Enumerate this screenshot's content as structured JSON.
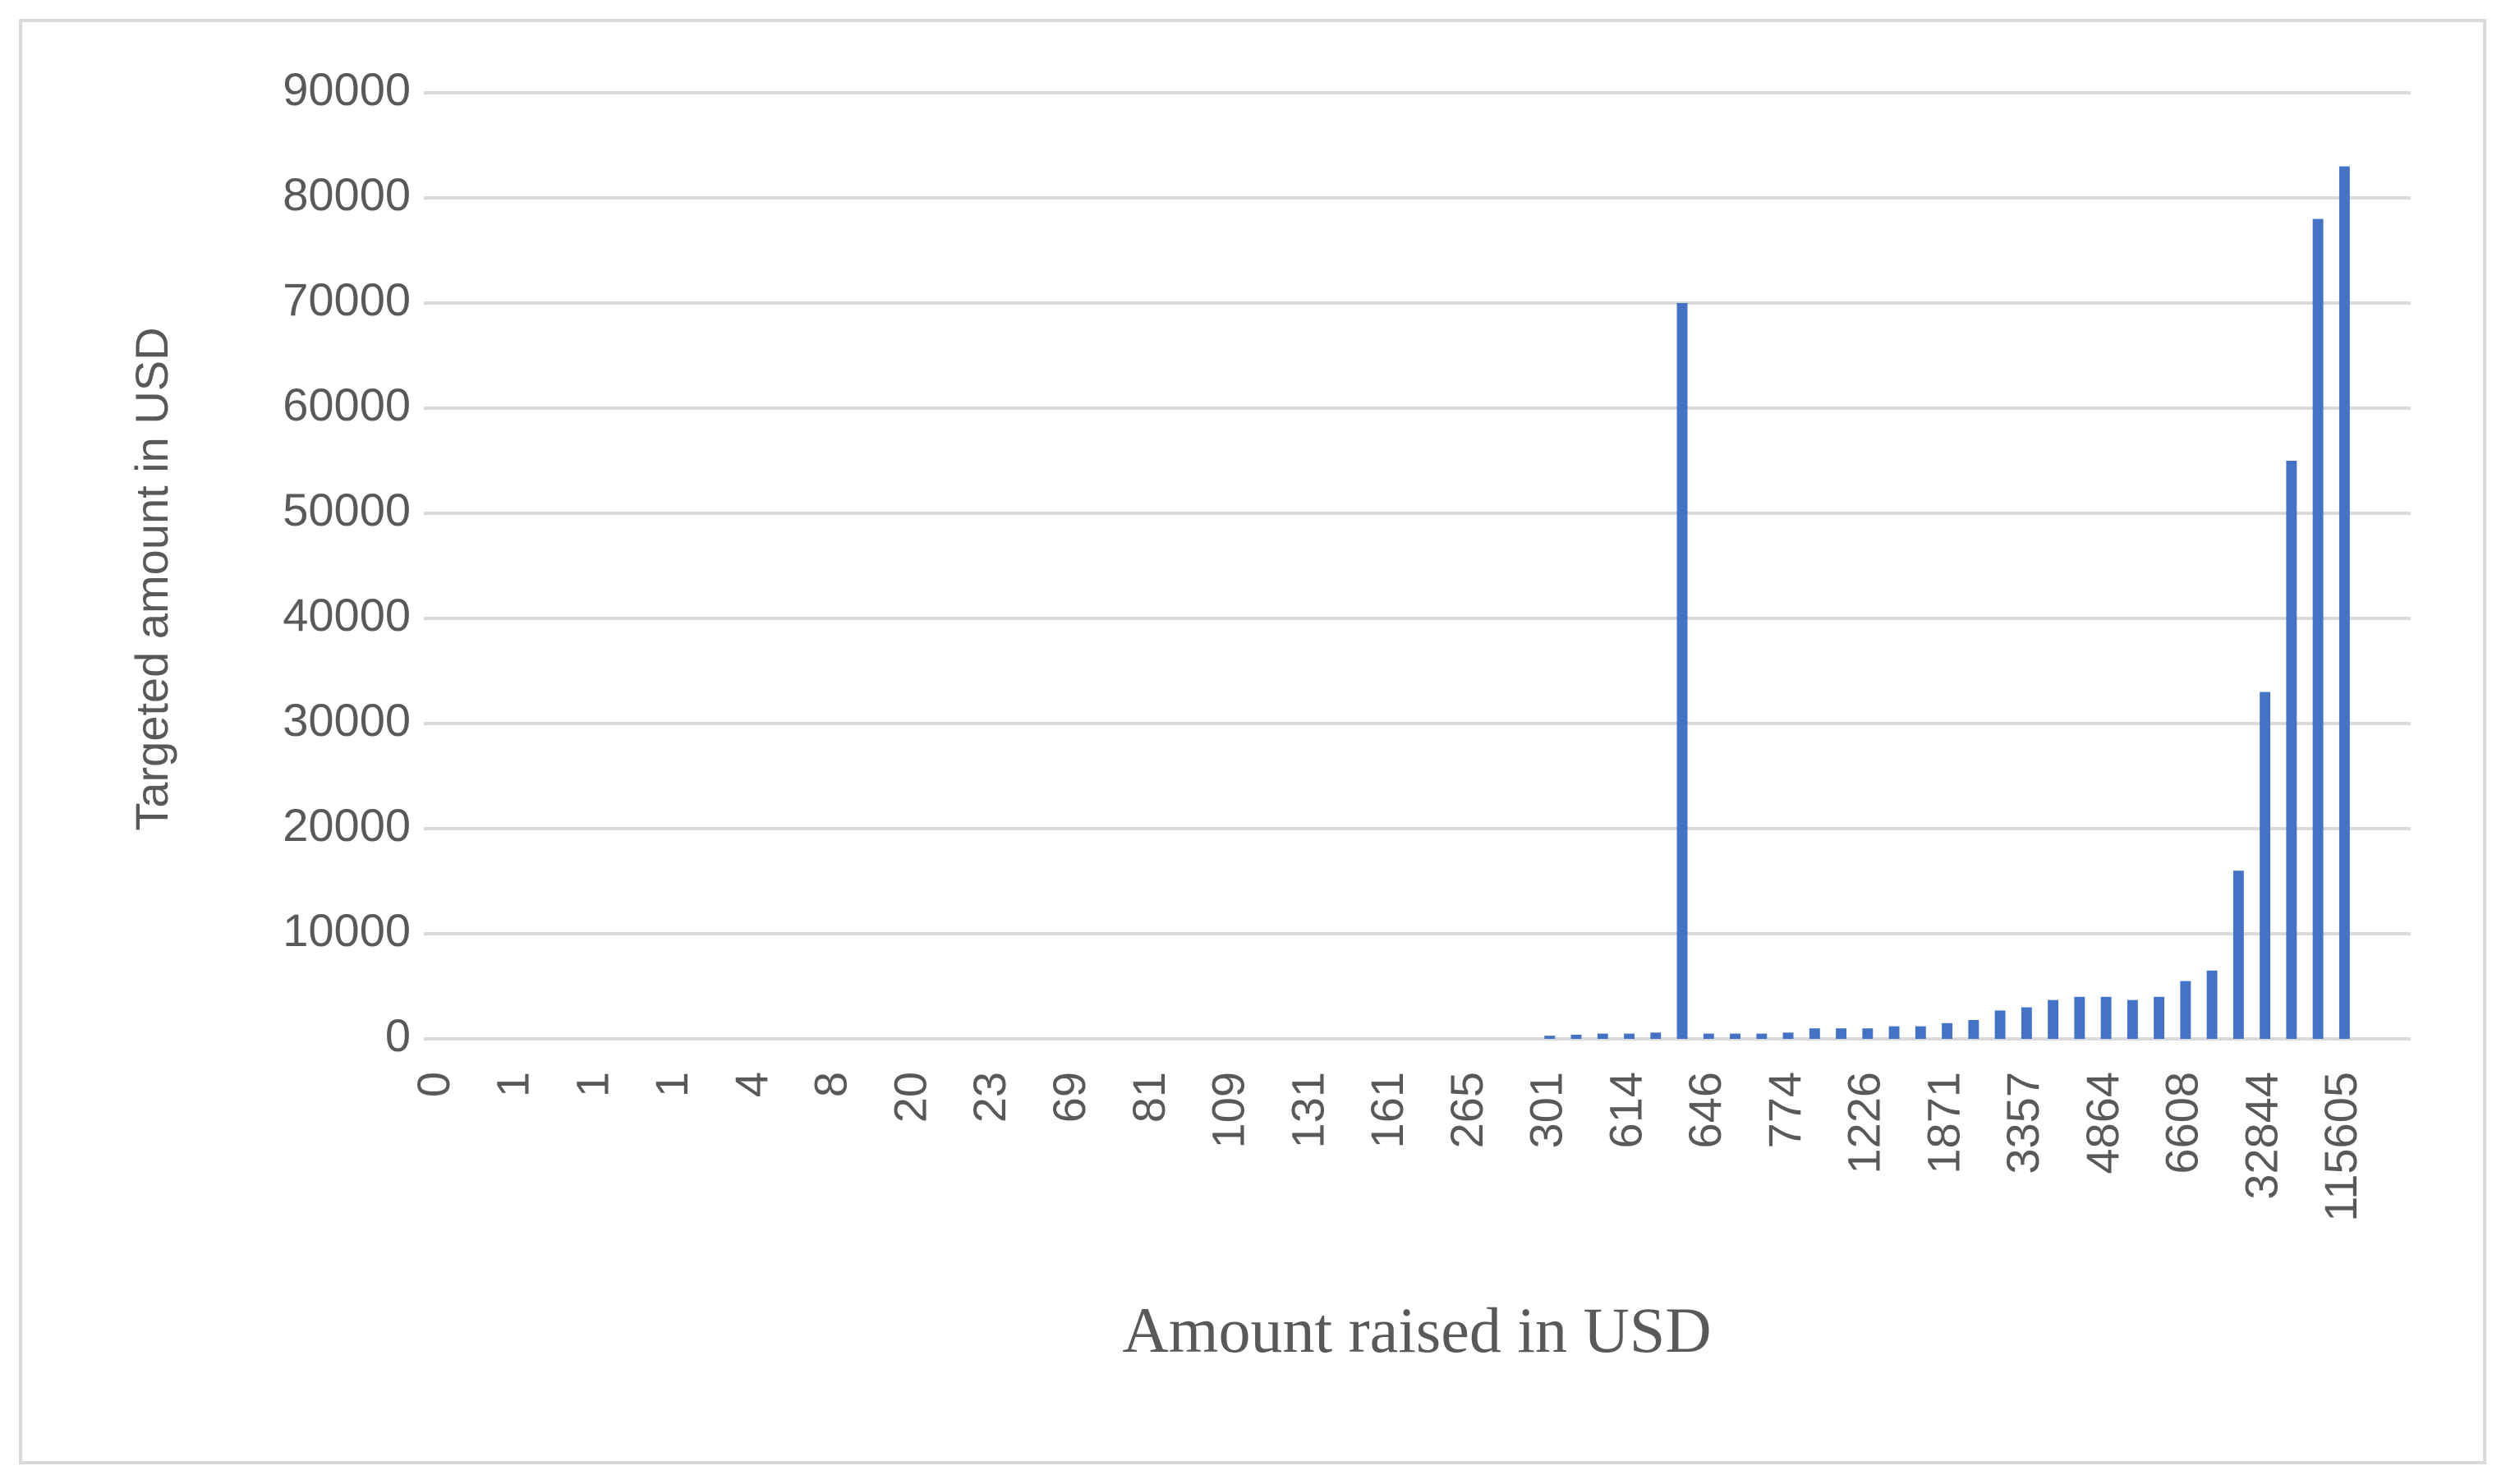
{
  "chart_data": {
    "type": "bar",
    "y_label": "Targeted amount in USD",
    "x_label": "Amount raised in USD",
    "categories": [
      "0",
      null,
      null,
      "1",
      null,
      null,
      "1",
      null,
      null,
      "1",
      null,
      null,
      "4",
      null,
      null,
      "8",
      null,
      null,
      "20",
      null,
      null,
      "23",
      null,
      null,
      "69",
      null,
      null,
      "81",
      null,
      null,
      "109",
      null,
      null,
      "131",
      null,
      null,
      "161",
      null,
      null,
      "265",
      null,
      null,
      "301",
      null,
      null,
      "614",
      null,
      null,
      "646",
      null,
      null,
      "774",
      null,
      null,
      "1226",
      null,
      null,
      "1871",
      null,
      null,
      "3357",
      null,
      null,
      "4864",
      null,
      null,
      "6608",
      null,
      null,
      "32844",
      null,
      null,
      "115605",
      null,
      null
    ],
    "values": [
      0,
      0,
      0,
      0,
      0,
      0,
      0,
      0,
      0,
      0,
      0,
      0,
      0,
      0,
      0,
      0,
      0,
      0,
      0,
      0,
      0,
      0,
      0,
      0,
      0,
      0,
      0,
      0,
      0,
      0,
      0,
      0,
      0,
      0,
      0,
      0,
      0,
      0,
      0,
      0,
      0,
      0,
      300,
      400,
      500,
      500,
      600,
      70000,
      500,
      500,
      500,
      600,
      1000,
      1000,
      1000,
      1200,
      1200,
      1500,
      1800,
      2700,
      3000,
      3700,
      4000,
      4000,
      3700,
      4000,
      5500,
      6500,
      16000,
      33000,
      55000,
      78000,
      83000,
      0,
      0
    ],
    "color": "#4472c4",
    "ylim": [
      0,
      90000
    ],
    "yticks": [
      0,
      10000,
      20000,
      30000,
      40000,
      50000,
      60000,
      70000,
      80000,
      90000
    ],
    "grid": true
  }
}
